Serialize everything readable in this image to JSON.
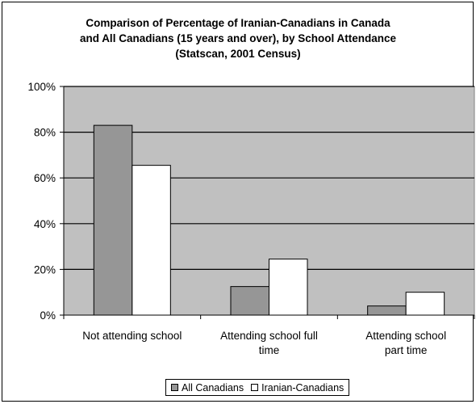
{
  "chart_data": {
    "type": "bar",
    "title": [
      "Comparison of Percentage of Iranian-Canadians in Canada",
      "and All Canadians (15 years and over),  by School Attendance",
      "(Statscan, 2001 Census)"
    ],
    "categories": [
      [
        "Not attending school"
      ],
      [
        "Attending school full",
        "time"
      ],
      [
        "Attending school",
        "part time"
      ]
    ],
    "series": [
      {
        "name": "All Canadians",
        "values": [
          83,
          12.5,
          4
        ],
        "color": "#969696"
      },
      {
        "name": "Iranian-Canadians",
        "values": [
          65.5,
          24.5,
          10
        ],
        "color": "#ffffff"
      }
    ],
    "ylim": [
      0,
      100
    ],
    "yticks": [
      0,
      20,
      40,
      60,
      80,
      100
    ],
    "ytick_format": "{v}%",
    "plot_background": "#c0c0c0",
    "grid": true,
    "legend": "bottom"
  }
}
